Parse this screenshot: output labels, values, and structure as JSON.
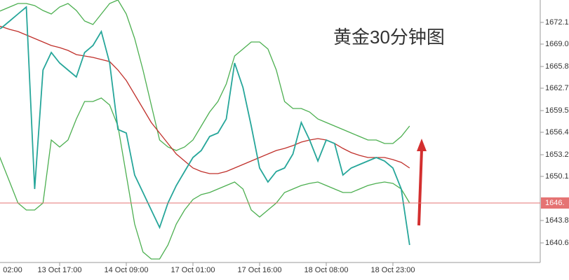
{
  "chart_data": {
    "type": "line",
    "annotation": "黄金30分钟图",
    "categories": [
      "02:00",
      null,
      null,
      null,
      null,
      null,
      null,
      null,
      "13 Oct 17:00",
      null,
      null,
      null,
      null,
      null,
      null,
      null,
      "14 Oct 09:00",
      null,
      null,
      null,
      null,
      null,
      null,
      null,
      "17 Oct 01:00",
      null,
      null,
      null,
      null,
      null,
      null,
      null,
      "17 Oct 16:00",
      null,
      null,
      null,
      null,
      null,
      null,
      null,
      "18 Oct 08:00",
      null,
      null,
      null,
      null,
      null,
      null,
      null,
      "18 Oct 23:00",
      null,
      null
    ],
    "series": [
      {
        "color": "#4caf50",
        "values": [
          1673.3,
          1673.8,
          1674.3,
          1674.8,
          1674.8,
          1674.5,
          1673.8,
          1673.3,
          1674.3,
          1674.8,
          1673.8,
          1672.3,
          1671.8,
          1673.3,
          1674.8,
          1675.3,
          1673.3,
          1669.8,
          1665.3,
          1660.3,
          1655.3,
          1654.3,
          1653.8,
          1654.3,
          1655.3,
          1657.3,
          1659.3,
          1660.8,
          1663.3,
          1667.3,
          1668.3,
          1669.3,
          1669.3,
          1668.3,
          1665.3,
          1660.8,
          1659.8,
          1659.8,
          1659.3,
          1658.3,
          1657.8,
          1657.3,
          1656.8,
          1656.3,
          1655.8,
          1655.3,
          1655.3,
          1654.8,
          1654.8,
          1655.8,
          1657.3
        ]
      },
      {
        "color": "#4caf50",
        "values": [
          1655.3,
          1652.3,
          1649.3,
          1646.3,
          1645.3,
          1645.3,
          1646.3,
          1655.3,
          1654.3,
          1655.3,
          1658.3,
          1660.8,
          1660.8,
          1661.3,
          1660.3,
          1657.3,
          1650.3,
          1643.3,
          1639.3,
          1638.3,
          1638.3,
          1640.3,
          1643.3,
          1645.3,
          1646.8,
          1647.5,
          1647.8,
          1648.3,
          1648.8,
          1649.3,
          1648.3,
          1645.3,
          1644.3,
          1645.3,
          1646.3,
          1647.8,
          1648.3,
          1648.8,
          1649.1,
          1649.3,
          1648.8,
          1648.3,
          1647.8,
          1647.8,
          1648.3,
          1648.8,
          1649.1,
          1649.3,
          1649.1,
          1648.3,
          1646.3
        ]
      },
      {
        "color": "#c0302b",
        "values": [
          1671.8,
          1671.5,
          1671.1,
          1670.8,
          1670.3,
          1669.8,
          1669.3,
          1668.8,
          1668.5,
          1668.1,
          1667.5,
          1667.3,
          1667.1,
          1666.8,
          1666.5,
          1665.3,
          1663.8,
          1661.8,
          1659.8,
          1657.8,
          1656.3,
          1654.8,
          1653.3,
          1652.3,
          1651.3,
          1650.8,
          1650.5,
          1650.5,
          1650.8,
          1651.3,
          1651.8,
          1652.3,
          1652.8,
          1653.3,
          1653.8,
          1654.1,
          1654.5,
          1655.0,
          1655.3,
          1655.5,
          1655.3,
          1654.8,
          1654.1,
          1653.5,
          1653.1,
          1652.8,
          1652.8,
          1652.8,
          1652.5,
          1652.1,
          1651.3
        ]
      },
      {
        "color": "#26a69a",
        "values": [
          1670.8,
          1671.3,
          1672.3,
          1673.3,
          1674.3,
          1648.3,
          1665.3,
          1667.8,
          1666.3,
          1665.3,
          1664.3,
          1667.8,
          1668.8,
          1670.8,
          1666.3,
          1656.8,
          1656.3,
          1650.3,
          1647.8,
          1645.3,
          1642.8,
          1646.3,
          1648.8,
          1650.8,
          1652.8,
          1653.8,
          1655.8,
          1656.3,
          1658.3,
          1666.3,
          1662.8,
          1657.3,
          1651.3,
          1649.3,
          1650.8,
          1651.3,
          1653.3,
          1657.8,
          1655.3,
          1652.3,
          1655.3,
          1654.8,
          1650.3,
          1651.3,
          1651.8,
          1652.3,
          1652.8,
          1652.3,
          1651.3,
          1648.3,
          1640.3
        ]
      }
    ],
    "price_line": {
      "value": 1646.3,
      "label": "1646.",
      "color": "#e57373"
    },
    "ylim": [
      1638.1,
      1675.3
    ],
    "yticks": [
      1640.6,
      1643.8,
      1650.1,
      1653.2,
      1656.4,
      1659.5,
      1662.7,
      1665.8,
      {
        "value": 1669.0,
        "label": "1669.0"
      },
      1672.1
    ]
  }
}
